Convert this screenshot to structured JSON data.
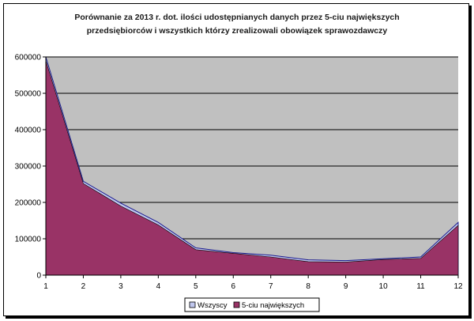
{
  "chart_data": {
    "type": "area",
    "title_lines": [
      "Porównanie za 2013 r. dot. ilości udostępnianych danych przez 5-ciu największych",
      "przedsiębiorców i wszystkich którzy zrealizowali obowiązek sprawozdawczy"
    ],
    "x": [
      1,
      2,
      3,
      4,
      5,
      6,
      7,
      8,
      9,
      10,
      11,
      12
    ],
    "ylim": [
      0,
      600000
    ],
    "y_ticks": [
      "0",
      "100000",
      "200000",
      "300000",
      "400000",
      "500000",
      "600000"
    ],
    "series": [
      {
        "name": "Wszyscy",
        "color": "#c0c7ee",
        "values": [
          600000,
          258000,
          198000,
          145000,
          75000,
          62000,
          55000,
          42000,
          40000,
          45000,
          50000,
          145000
        ]
      },
      {
        "name": "5-ciu największych",
        "color": "#993366",
        "values": [
          590000,
          252000,
          190000,
          138000,
          70000,
          60000,
          50000,
          37000,
          36000,
          43000,
          46000,
          137000
        ]
      }
    ],
    "plot_bg": "#c0c0c0",
    "grid": true,
    "legend_position": "bottom"
  }
}
